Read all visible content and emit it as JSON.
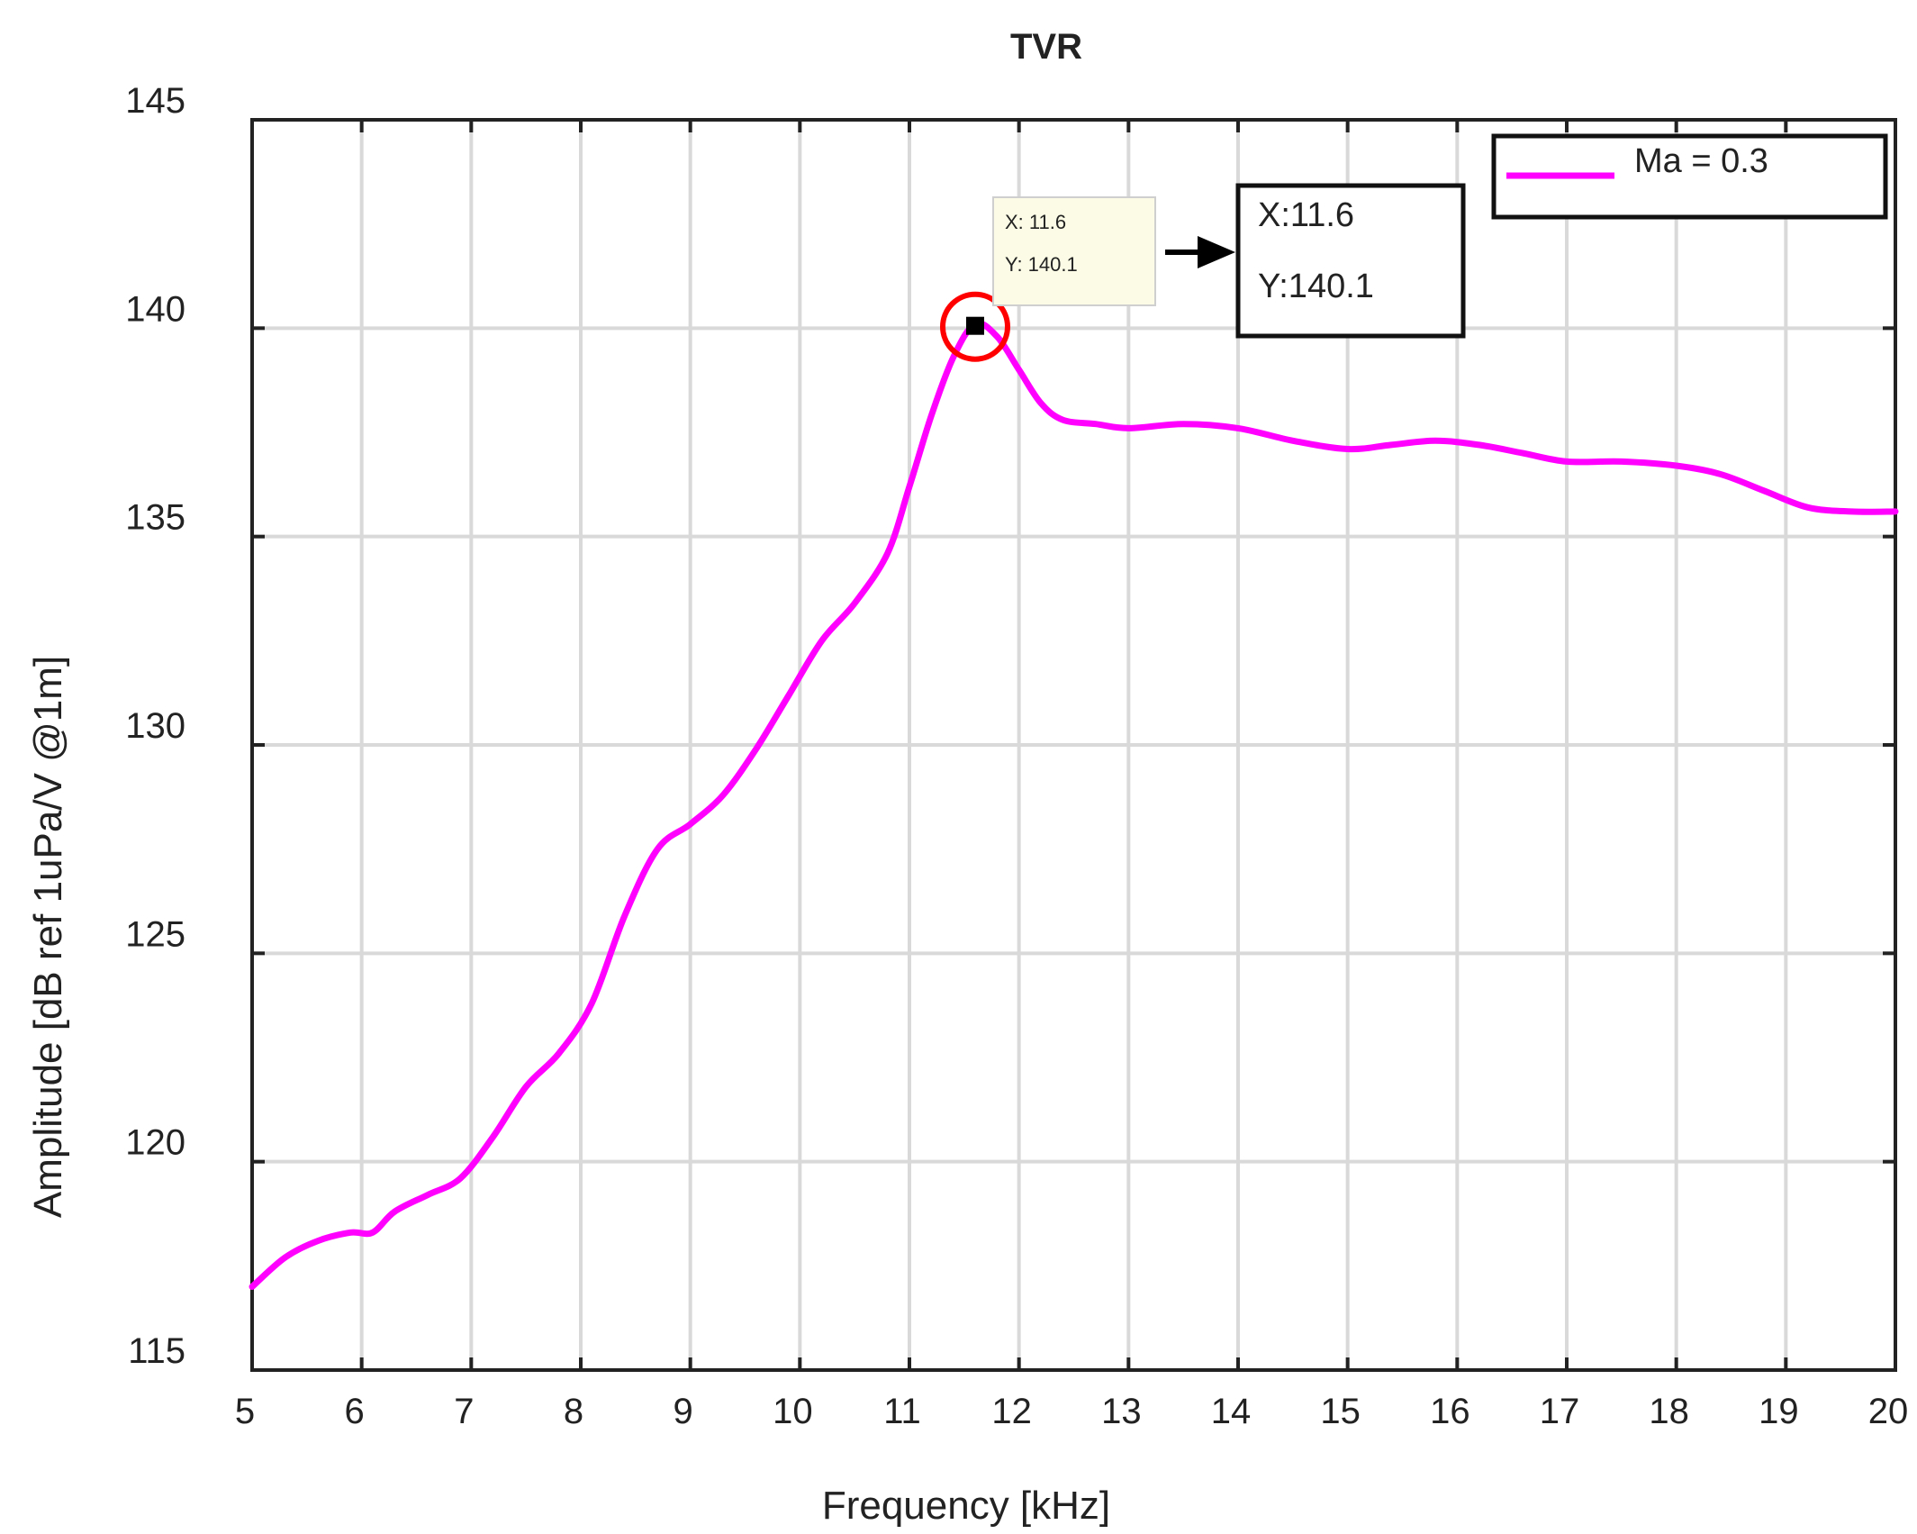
{
  "chart_data": {
    "type": "line",
    "title": "TVR",
    "xlabel": "Frequency [kHz]",
    "ylabel": "Amplitude [dB ref 1uPa/V @1m]",
    "xlim": [
      5,
      20
    ],
    "ylim": [
      115,
      145
    ],
    "xticks": [
      5,
      6,
      7,
      8,
      9,
      10,
      11,
      12,
      13,
      14,
      15,
      16,
      17,
      18,
      19,
      20
    ],
    "yticks": [
      115,
      120,
      125,
      130,
      135,
      140,
      145
    ],
    "grid": true,
    "legend_position": "top-right",
    "series": [
      {
        "name": "Ma = 0.3",
        "color": "#ff00ff",
        "x": [
          5.0,
          5.3,
          5.6,
          5.9,
          6.1,
          6.3,
          6.6,
          6.9,
          7.2,
          7.5,
          7.8,
          8.1,
          8.4,
          8.7,
          9.0,
          9.3,
          9.6,
          9.9,
          10.2,
          10.5,
          10.8,
          11.0,
          11.2,
          11.4,
          11.6,
          11.8,
          12.0,
          12.2,
          12.4,
          12.7,
          13.0,
          13.5,
          14.0,
          14.5,
          15.0,
          15.4,
          15.8,
          16.2,
          16.6,
          17.0,
          17.5,
          18.0,
          18.4,
          18.8,
          19.2,
          19.6,
          20.0
        ],
        "y": [
          117.0,
          117.7,
          118.1,
          118.3,
          118.3,
          118.8,
          119.2,
          119.6,
          120.6,
          121.8,
          122.6,
          123.8,
          125.9,
          127.5,
          128.1,
          128.8,
          129.9,
          131.2,
          132.5,
          133.4,
          134.6,
          136.2,
          137.9,
          139.3,
          140.1,
          139.8,
          139.0,
          138.2,
          137.8,
          137.7,
          137.6,
          137.7,
          137.6,
          137.3,
          137.1,
          137.2,
          137.3,
          137.2,
          137.0,
          136.8,
          136.8,
          136.7,
          136.5,
          136.1,
          135.7,
          135.6,
          135.6
        ]
      }
    ],
    "marker": {
      "x": 11.6,
      "y": 140.1,
      "color": "#000000",
      "highlight": "#ff0000"
    },
    "datatip": {
      "x_text": "X: 11.6",
      "y_text": "Y: 140.1",
      "background": "#fcfce6"
    },
    "callout": {
      "x_text": "X:11.6",
      "y_text": "Y:140.1"
    }
  }
}
